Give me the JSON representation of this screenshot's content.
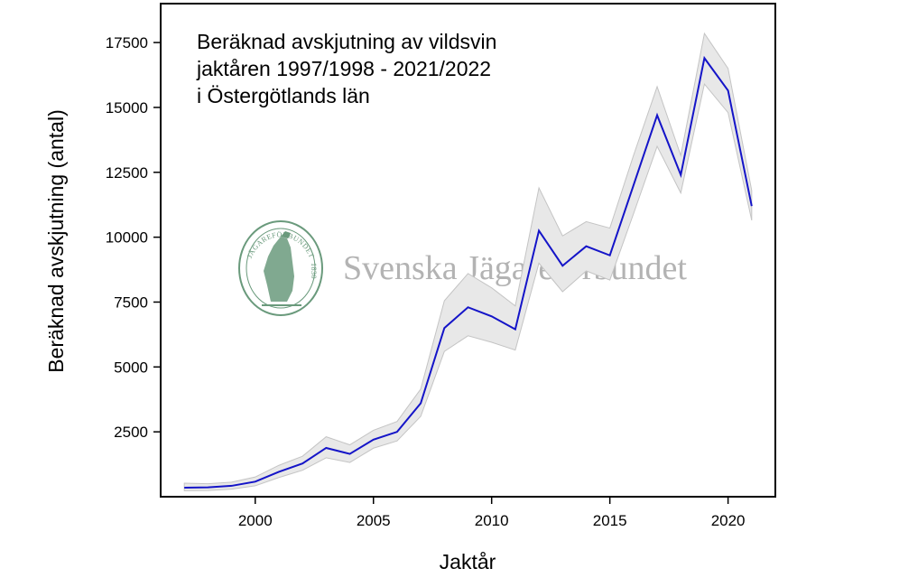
{
  "chart_data": {
    "type": "line",
    "title_lines": [
      "Beräknad avskjutning av vildsvin",
      "jaktåren 1997/1998 - 2021/2022",
      "i Östergötlands län"
    ],
    "xlabel": "Jaktår",
    "ylabel": "Beräknad avskjutning (antal)",
    "xlim": [
      1996,
      2022
    ],
    "ylim": [
      0,
      19000
    ],
    "x_ticks": [
      2000,
      2005,
      2010,
      2015,
      2020
    ],
    "y_ticks": [
      2500,
      5000,
      7500,
      10000,
      12500,
      15000,
      17500
    ],
    "grid": false,
    "legend": "none",
    "x": [
      1997,
      1998,
      1999,
      2000,
      2001,
      2002,
      2003,
      2004,
      2005,
      2006,
      2007,
      2008,
      2009,
      2010,
      2011,
      2012,
      2013,
      2014,
      2015,
      2016,
      2017,
      2018,
      2019,
      2020,
      2021
    ],
    "series": [
      {
        "values": [
          350,
          360,
          420,
          580,
          960,
          1280,
          1880,
          1650,
          2200,
          2500,
          3600,
          6500,
          7300,
          6950,
          6450,
          10250,
          8900,
          9650,
          9300,
          12000,
          14700,
          12400,
          16900,
          15650,
          11200
        ],
        "lower": [
          230,
          240,
          290,
          420,
          740,
          1020,
          1500,
          1320,
          1870,
          2150,
          3100,
          5600,
          6200,
          5950,
          5650,
          9000,
          7900,
          8700,
          8350,
          10900,
          13500,
          11700,
          15900,
          14800,
          10650
        ],
        "upper": [
          520,
          500,
          560,
          760,
          1210,
          1560,
          2310,
          2000,
          2560,
          2900,
          4150,
          7550,
          8600,
          8050,
          7350,
          11900,
          10050,
          10600,
          10350,
          13150,
          15800,
          13150,
          17850,
          16500,
          11800
        ],
        "color": "#1414c8",
        "band_color": "#e8e8e8"
      }
    ]
  },
  "watermark": {
    "text": "Svenska Jägareförbundet",
    "seal_text": "JÄGAREFÖRBUNDET",
    "seal_year": "1830",
    "color": "#6a9a7c"
  }
}
